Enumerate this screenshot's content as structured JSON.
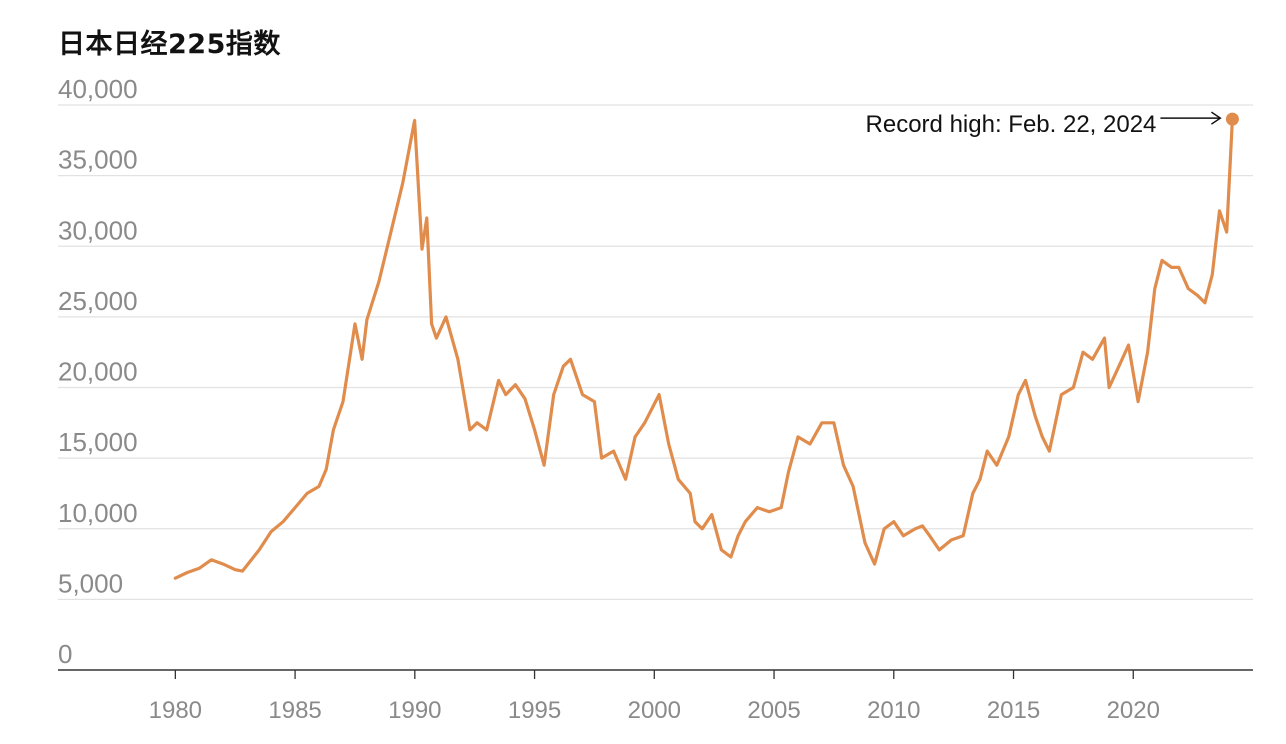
{
  "chart_data": {
    "type": "line",
    "title": "日本日经225指数",
    "xlabel": "",
    "ylabel": "",
    "xlim": [
      1975.1,
      2025.0
    ],
    "ylim": [
      0,
      40000
    ],
    "yticks": [
      0,
      5000,
      10000,
      15000,
      20000,
      25000,
      30000,
      35000,
      40000
    ],
    "ytick_labels": [
      "0",
      "5,000",
      "10,000",
      "15,000",
      "20,000",
      "25,000",
      "30,000",
      "35,000",
      "40,000"
    ],
    "xticks": [
      1980,
      1985,
      1990,
      1995,
      2000,
      2005,
      2010,
      2015,
      2020
    ],
    "xtick_labels": [
      "1980",
      "1985",
      "1990",
      "1995",
      "2000",
      "2005",
      "2010",
      "2015",
      "2020"
    ],
    "grid": true,
    "color": "#e08c4c",
    "series": [
      {
        "x": [
          1980.0,
          1980.5,
          1981.0,
          1981.5,
          1982.0,
          1982.5,
          1982.8,
          1983.5,
          1984.0,
          1984.5,
          1985.0,
          1985.5,
          1986.0,
          1986.3,
          1986.6,
          1987.0,
          1987.5,
          1987.8,
          1988.0,
          1988.5,
          1989.0,
          1989.5,
          1989.99,
          1990.3,
          1990.5,
          1990.7,
          1990.9,
          1991.3,
          1991.8,
          1992.3,
          1992.6,
          1993.0,
          1993.5,
          1993.8,
          1994.2,
          1994.6,
          1995.0,
          1995.4,
          1995.8,
          1996.2,
          1996.5,
          1997.0,
          1997.5,
          1997.8,
          1998.3,
          1998.8,
          1999.2,
          1999.6,
          2000.2,
          2000.6,
          2001.0,
          2001.5,
          2001.7,
          2002.0,
          2002.4,
          2002.8,
          2003.2,
          2003.5,
          2003.8,
          2004.3,
          2004.8,
          2005.3,
          2005.6,
          2006.0,
          2006.5,
          2007.0,
          2007.5,
          2007.9,
          2008.3,
          2008.8,
          2009.2,
          2009.6,
          2010.0,
          2010.4,
          2010.9,
          2011.2,
          2011.5,
          2011.9,
          2012.4,
          2012.9,
          2013.3,
          2013.6,
          2013.9,
          2014.3,
          2014.8,
          2015.2,
          2015.5,
          2015.9,
          2016.2,
          2016.5,
          2017.0,
          2017.5,
          2017.9,
          2018.3,
          2018.8,
          2018.99,
          2019.4,
          2019.8,
          2020.2,
          2020.6,
          2020.9,
          2021.2,
          2021.6,
          2021.9,
          2022.3,
          2022.7,
          2022.99,
          2023.3,
          2023.6,
          2023.9,
          2024.14
        ],
        "values": [
          6500,
          6900,
          7200,
          7800,
          7500,
          7100,
          7000,
          8500,
          9800,
          10500,
          11500,
          12500,
          13000,
          14200,
          17000,
          19000,
          24500,
          22000,
          24800,
          27500,
          31000,
          34500,
          38900,
          29800,
          32000,
          24500,
          23500,
          25000,
          22000,
          17000,
          17500,
          17000,
          20500,
          19500,
          20200,
          19200,
          17000,
          14500,
          19500,
          21500,
          22000,
          19500,
          19000,
          15000,
          15500,
          13500,
          16500,
          17500,
          19500,
          16000,
          13500,
          12500,
          10500,
          10000,
          11000,
          8500,
          8000,
          9500,
          10500,
          11500,
          11200,
          11500,
          14000,
          16500,
          16000,
          17500,
          17500,
          14500,
          13000,
          9000,
          7500,
          10000,
          10500,
          9500,
          10000,
          10200,
          9500,
          8500,
          9200,
          9500,
          12500,
          13500,
          15500,
          14500,
          16500,
          19500,
          20500,
          18000,
          16500,
          15500,
          19500,
          20000,
          22500,
          22000,
          23500,
          20000,
          21500,
          23000,
          19000,
          22500,
          27000,
          29000,
          28500,
          28500,
          27000,
          26500,
          26000,
          28000,
          32500,
          31000,
          39000
        ]
      }
    ],
    "annotations": [
      {
        "text": "Record high: Feb. 22, 2024",
        "x": 2024.14,
        "y": 39000
      }
    ]
  }
}
